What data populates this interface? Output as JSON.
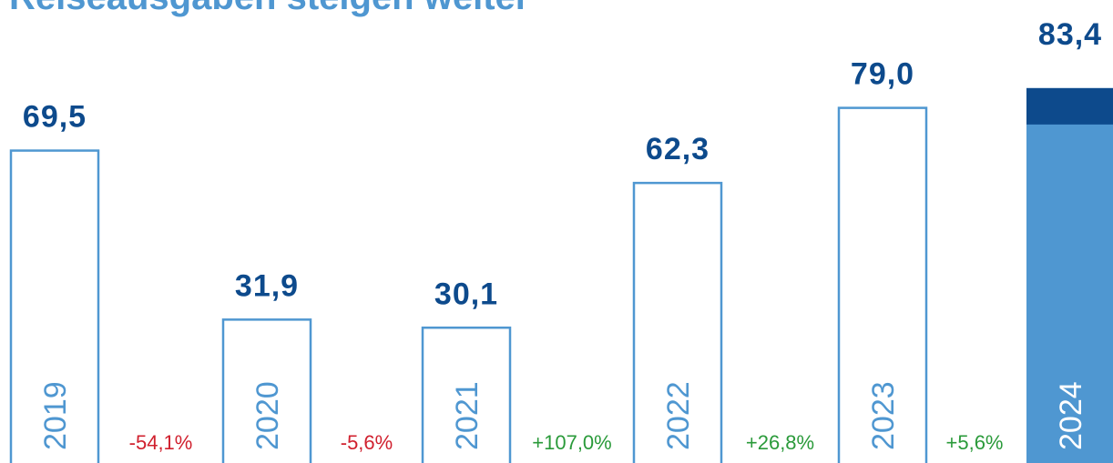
{
  "chart_data": {
    "type": "bar",
    "title": "Reiseausgaben steigen weiter",
    "categories": [
      "2019",
      "2020",
      "2021",
      "2022",
      "2023",
      "2024"
    ],
    "values": [
      69.5,
      31.9,
      30.1,
      62.3,
      79.0,
      83.4
    ],
    "value_labels": [
      "69,5",
      "31,9",
      "30,1",
      "62,3",
      "79,0",
      "83,4"
    ],
    "changes": [
      -54.1,
      -5.6,
      107.0,
      26.8,
      5.6
    ],
    "change_labels": [
      "-54,1%",
      "-5,6%",
      "+107,0%",
      "+26,8%",
      "+5,6%"
    ],
    "color": "#4f97d1",
    "highlight_color": "#0d4a8c",
    "value_label_color": "#0d4a8c",
    "negative_color": "#d0202e",
    "positive_color": "#2a9a3a",
    "ylim": [
      0,
      103
    ]
  }
}
